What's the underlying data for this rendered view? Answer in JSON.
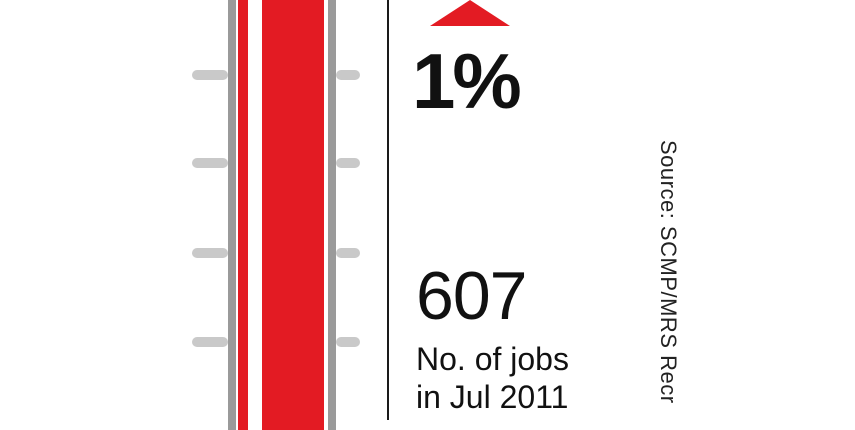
{
  "indicator": {
    "direction": "up",
    "arrow_color": "#e31b23",
    "change_text": "1%"
  },
  "jobs": {
    "count": "607",
    "caption_line1": "No. of jobs",
    "caption_line2": "in Jul 2011"
  },
  "source": {
    "text": "Source: SCMP/MRS Recr"
  },
  "thermometer": {
    "fill_color": "#e31b23",
    "frame_color": "#9a9a9a",
    "tick_color": "#c9c9c9"
  }
}
